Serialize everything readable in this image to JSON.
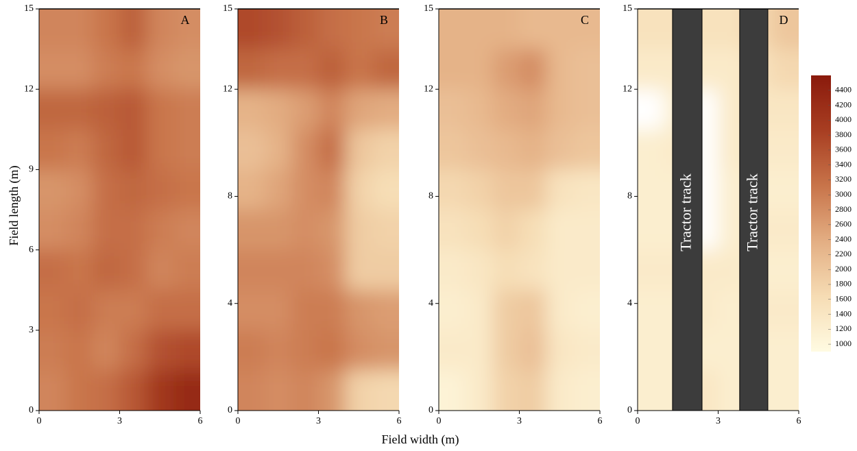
{
  "figure": {
    "xlabel": "Field width (m)",
    "ylabel": "Field length (m)",
    "colorbar": {
      "lim": [
        900,
        4600
      ],
      "ticks": [
        1000,
        1200,
        1400,
        1600,
        1800,
        2000,
        2200,
        2400,
        2600,
        2800,
        3000,
        3200,
        3400,
        3600,
        3800,
        4000,
        4200,
        4400
      ],
      "colors": [
        "#fffbe2",
        "#f6dcb4",
        "#e3ae83",
        "#c8744a",
        "#a83e22",
        "#8a1a0c"
      ]
    }
  },
  "chart_data": [
    {
      "type": "heatmap",
      "label": "A",
      "xlim": [
        0,
        6
      ],
      "ylim": [
        0,
        15
      ],
      "xticks": [
        0,
        3,
        6
      ],
      "yticks": [
        0,
        3,
        6,
        9,
        12,
        15
      ],
      "x_edges": [
        0,
        1,
        2,
        3,
        4,
        5,
        6
      ],
      "y_edges": [
        15,
        13.5,
        12,
        10.5,
        9,
        7.5,
        6,
        4.5,
        3,
        1.5,
        0
      ],
      "z": [
        [
          2900,
          2900,
          3100,
          3400,
          2900,
          2800
        ],
        [
          2800,
          2800,
          3000,
          3100,
          2800,
          2700
        ],
        [
          3300,
          3300,
          3400,
          3500,
          3100,
          3000
        ],
        [
          3100,
          3000,
          3300,
          3500,
          3100,
          3000
        ],
        [
          2700,
          2800,
          3200,
          3300,
          3200,
          3100
        ],
        [
          2800,
          2900,
          3200,
          3200,
          3000,
          2900
        ],
        [
          3200,
          3100,
          3300,
          3200,
          2900,
          3000
        ],
        [
          3100,
          3200,
          3000,
          3000,
          3200,
          3200
        ],
        [
          3000,
          3100,
          2900,
          3200,
          3600,
          3700
        ],
        [
          2900,
          3100,
          3200,
          3500,
          4000,
          4300
        ]
      ]
    },
    {
      "type": "heatmap",
      "label": "B",
      "xlim": [
        0,
        6
      ],
      "ylim": [
        0,
        15
      ],
      "xticks": [
        0,
        3,
        6
      ],
      "yticks": [
        0,
        4,
        8,
        12,
        15
      ],
      "x_edges": [
        0,
        1,
        2,
        3,
        4,
        5,
        6
      ],
      "y_edges": [
        15,
        13.5,
        12,
        10.5,
        9,
        7.5,
        6,
        4.5,
        3,
        1.5,
        0
      ],
      "z": [
        [
          3700,
          3600,
          3400,
          3200,
          3100,
          3000
        ],
        [
          3300,
          3200,
          3200,
          3400,
          3100,
          3300
        ],
        [
          2300,
          2400,
          2600,
          2900,
          2500,
          2400
        ],
        [
          2100,
          2300,
          2800,
          3200,
          2000,
          1800
        ],
        [
          2300,
          2500,
          2800,
          2900,
          1800,
          1600
        ],
        [
          2700,
          2700,
          2800,
          2700,
          1900,
          1800
        ],
        [
          2900,
          2900,
          2900,
          2800,
          1900,
          1900
        ],
        [
          2800,
          2800,
          3000,
          3000,
          2700,
          2600
        ],
        [
          3000,
          2900,
          3000,
          3100,
          2800,
          2700
        ],
        [
          2900,
          2800,
          2900,
          2700,
          1800,
          1700
        ]
      ]
    },
    {
      "type": "heatmap",
      "label": "C",
      "xlim": [
        0,
        6
      ],
      "ylim": [
        0,
        15
      ],
      "xticks": [
        0,
        3,
        6
      ],
      "yticks": [
        0,
        4,
        8,
        12,
        15
      ],
      "x_edges": [
        0,
        1,
        2,
        3,
        4,
        5,
        6
      ],
      "y_edges": [
        15,
        13.5,
        12,
        10.5,
        9,
        7.5,
        6,
        4.5,
        3,
        1.5,
        0
      ],
      "z": [
        [
          2300,
          2300,
          2300,
          2200,
          2200,
          2200
        ],
        [
          2300,
          2300,
          2600,
          2800,
          2200,
          2100
        ],
        [
          2100,
          2200,
          2400,
          2500,
          2200,
          2100
        ],
        [
          2000,
          2100,
          2200,
          2300,
          2100,
          2000
        ],
        [
          1700,
          1800,
          2000,
          2000,
          1500,
          1400
        ],
        [
          1500,
          1600,
          1800,
          1600,
          1300,
          1300
        ],
        [
          1300,
          1400,
          1600,
          1500,
          1300,
          1300
        ],
        [
          1200,
          1300,
          1900,
          2000,
          1300,
          1200
        ],
        [
          1300,
          1300,
          1900,
          2100,
          1400,
          1300
        ],
        [
          1100,
          1300,
          1800,
          1900,
          1300,
          1200
        ]
      ]
    },
    {
      "type": "heatmap",
      "label": "D",
      "xlim": [
        0,
        6
      ],
      "ylim": [
        0,
        15
      ],
      "xticks": [
        0,
        3,
        6
      ],
      "yticks": [
        0,
        4,
        8,
        12,
        15
      ],
      "x_edges": [
        0,
        1,
        2,
        3,
        4,
        5,
        6
      ],
      "y_edges": [
        15,
        13.5,
        12,
        10.5,
        9,
        7.5,
        6,
        4.5,
        3,
        1.5,
        0
      ],
      "z": [
        [
          1500,
          1500,
          1500,
          1500,
          1700,
          2000
        ],
        [
          1300,
          1300,
          1300,
          1300,
          1500,
          1700
        ],
        [
          800,
          1200,
          800,
          1300,
          1400,
          1400
        ],
        [
          1200,
          1300,
          800,
          1300,
          1300,
          1300
        ],
        [
          1200,
          1200,
          800,
          1200,
          1200,
          1200
        ],
        [
          1200,
          1200,
          800,
          1200,
          1300,
          1300
        ],
        [
          1300,
          1300,
          1300,
          1300,
          1200,
          1200
        ],
        [
          1200,
          1200,
          1300,
          1200,
          1300,
          1300
        ],
        [
          1200,
          1200,
          1200,
          1200,
          1200,
          1200
        ],
        [
          1200,
          1200,
          1400,
          1200,
          1200,
          1200
        ]
      ],
      "tracks": [
        {
          "x": [
            1.3,
            2.4
          ],
          "label": "Tractor track"
        },
        {
          "x": [
            3.8,
            4.85
          ],
          "label": "Tractor track"
        }
      ],
      "track_color": "#3c3c3c"
    }
  ]
}
